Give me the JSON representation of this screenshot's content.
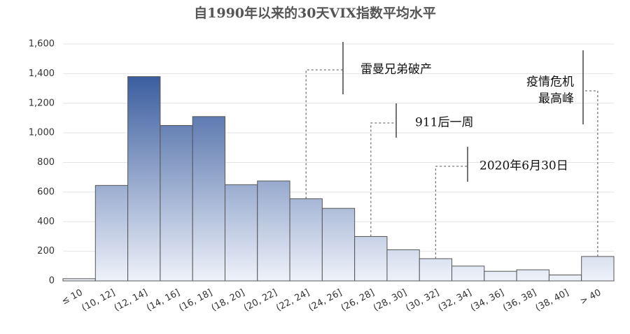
{
  "chart_data": {
    "type": "bar",
    "title": "自1990年以来的30天VIX指数平均水平",
    "categories": [
      "≤ 10",
      "(10, 12]",
      "(12, 14]",
      "(14, 16]",
      "(16, 18]",
      "(18, 20]",
      "(20, 22]",
      "(22, 24]",
      "(24, 26]",
      "(26, 28]",
      "(28, 30]",
      "(30, 32]",
      "(32, 34]",
      "(34, 36]",
      "(36, 38]",
      "(38, 40]",
      "> 40"
    ],
    "values": [
      15,
      645,
      1380,
      1050,
      1110,
      650,
      675,
      555,
      490,
      300,
      210,
      150,
      100,
      65,
      75,
      40,
      165
    ],
    "color": [
      "#1f4690",
      "#eef2fa"
    ],
    "ylim": [
      0,
      1600
    ],
    "yticks": [
      0,
      200,
      400,
      600,
      800,
      {
        "value": 1000,
        "label": "1,000"
      },
      {
        "value": 1200,
        "label": "1,200"
      },
      {
        "value": 1400,
        "label": "1,400"
      },
      {
        "value": 1600,
        "label": "1,600"
      }
    ],
    "grid": true,
    "annotations": [
      {
        "lines": [
          "雷曼兄弟破产"
        ]
      },
      {
        "lines": [
          "911后一周"
        ]
      },
      {
        "lines": [
          "2020年6月30日"
        ]
      },
      {
        "lines": [
          "疫情危机",
          "最高峰"
        ]
      }
    ]
  }
}
